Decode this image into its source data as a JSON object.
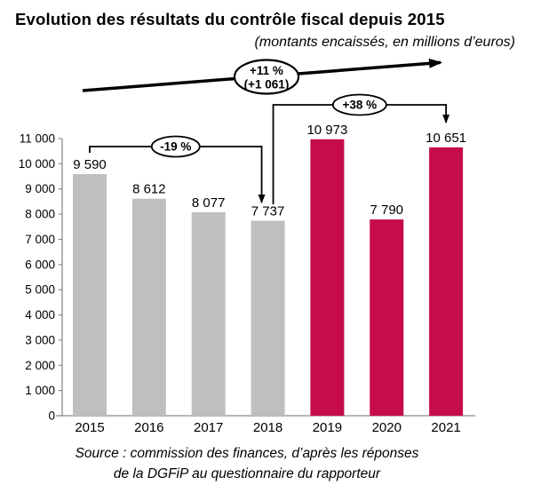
{
  "title": "Evolution des résultats du contrôle fiscal depuis 2015",
  "subtitle": "(montants encaissés, en millions d’euros)",
  "source": {
    "line1": "Source : commission des finances, d’après les réponses",
    "line2": "de la DGFiP au questionnaire du rapporteur"
  },
  "colors": {
    "gray_bar": "#BFBFBF",
    "red_bar": "#C60C4A",
    "axis": "#8C8C8C",
    "annotation": "#000000",
    "background": "#FFFFFF"
  },
  "chart_data": {
    "type": "bar",
    "title": "Evolution des résultats du contrôle fiscal depuis 2015",
    "subtitle": "(montants encaissés, en millions d’euros)",
    "xlabel": "",
    "ylabel": "",
    "categories": [
      "2015",
      "2016",
      "2017",
      "2018",
      "2019",
      "2020",
      "2021"
    ],
    "values": [
      9590,
      8612,
      8077,
      7737,
      10973,
      7790,
      10651
    ],
    "value_labels": [
      "9 590",
      "8 612",
      "8 077",
      "7 737",
      "10 973",
      "7 790",
      "10 651"
    ],
    "bar_colors": [
      "gray",
      "gray",
      "gray",
      "gray",
      "red",
      "red",
      "red"
    ],
    "ylim": [
      0,
      11000
    ],
    "ytick_step": 1000,
    "ytick_labels": [
      "0",
      "1 000",
      "2 000",
      "3 000",
      "4 000",
      "5 000",
      "6 000",
      "7 000",
      "8 000",
      "9 000",
      "10 000",
      "11 000"
    ],
    "grid": false,
    "legend": "none",
    "annotations": {
      "trend": {
        "label_lines": [
          "+11 %",
          "(+1 061)"
        ]
      },
      "bracket_down": {
        "label": "-19 %",
        "from": "2015",
        "to": "2018"
      },
      "bracket_up": {
        "label": "+38 %",
        "from": "2018",
        "to": "2021"
      }
    }
  }
}
